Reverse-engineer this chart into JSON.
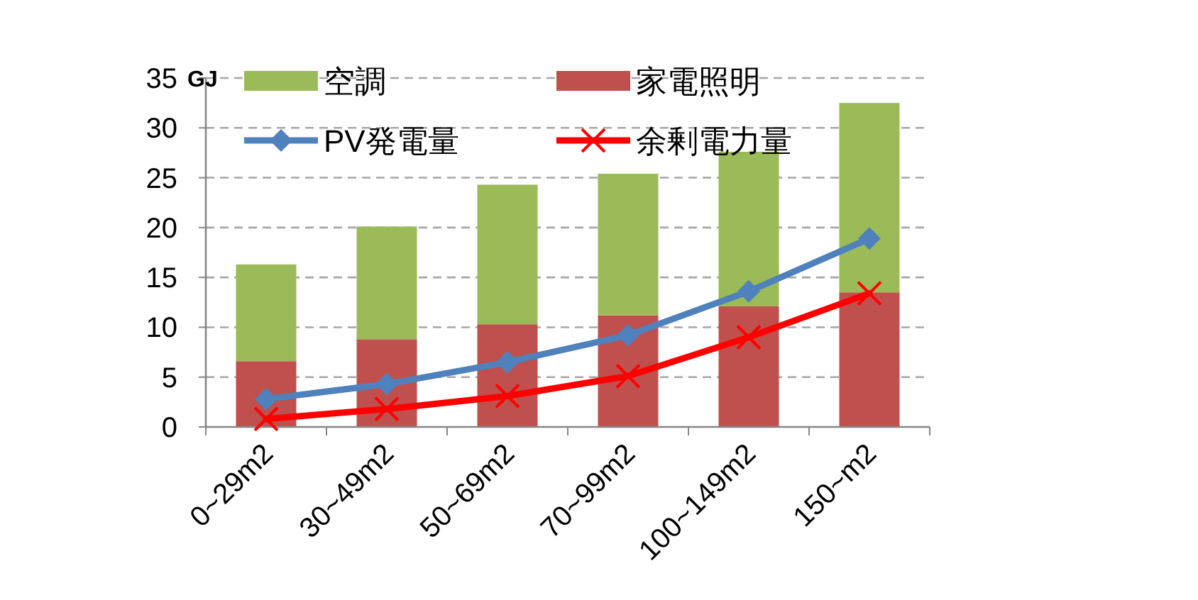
{
  "chart_data": {
    "type": "bar",
    "stacked": true,
    "ylabel": "GJ",
    "categories": [
      "0~29m2",
      "30~49m2",
      "50~69m2",
      "70~99m2",
      "100~149m2",
      "150~m2"
    ],
    "series": [
      {
        "name": "家電照明",
        "color": "#c0504d",
        "values": [
          6.6,
          8.8,
          10.3,
          11.2,
          12.1,
          13.5
        ]
      },
      {
        "name": "空調",
        "color": "#9bbb59",
        "values": [
          9.7,
          11.3,
          14.0,
          14.2,
          15.5,
          19.0
        ]
      },
      {
        "name": "PV発電量",
        "type": "line",
        "color": "#4f81bd",
        "marker": "diamond",
        "values": [
          2.8,
          4.3,
          6.5,
          9.2,
          13.6,
          18.9
        ]
      },
      {
        "name": "余剰電力量",
        "type": "line",
        "color": "#ff0000",
        "marker": "cross",
        "values": [
          0.8,
          1.8,
          3.1,
          5.1,
          9.0,
          13.4
        ]
      }
    ],
    "ylim": [
      0,
      35
    ],
    "yticks": [
      0,
      5,
      10,
      15,
      20,
      25,
      30,
      35
    ],
    "grid": "y",
    "legend": "top"
  }
}
